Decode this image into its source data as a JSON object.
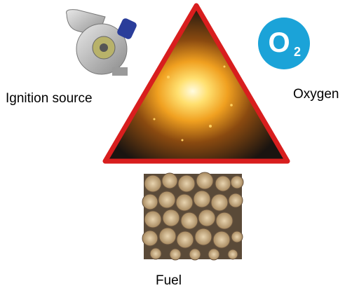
{
  "nodes": [
    {
      "label": "Ignition source"
    },
    {
      "label": "Oxygen",
      "icon": {
        "symbol": "O",
        "subscript": "2"
      }
    },
    {
      "label": "Fuel"
    }
  ]
}
